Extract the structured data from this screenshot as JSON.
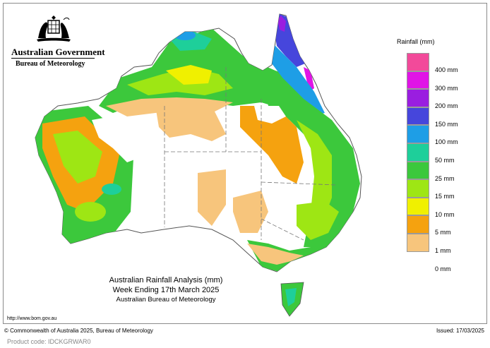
{
  "header": {
    "government": "Australian Government",
    "bureau": "Bureau of Meteorology",
    "crest_icon": "commonwealth-coat-of-arms"
  },
  "legend": {
    "title": "Rainfall (mm)",
    "bins": [
      {
        "label": "400 mm",
        "color": "#f24a9a"
      },
      {
        "label": "300 mm",
        "color": "#e014e6"
      },
      {
        "label": "200 mm",
        "color": "#9a1ee0"
      },
      {
        "label": "150 mm",
        "color": "#4646dc"
      },
      {
        "label": "100 mm",
        "color": "#1e9ee6"
      },
      {
        "label": "50 mm",
        "color": "#1ecf9a"
      },
      {
        "label": "25 mm",
        "color": "#3cc83c"
      },
      {
        "label": "15 mm",
        "color": "#9ee614"
      },
      {
        "label": "10 mm",
        "color": "#f0f000"
      },
      {
        "label": "5 mm",
        "color": "#f5a20f"
      },
      {
        "label": "1 mm",
        "color": "#f7c57c"
      },
      {
        "label": "0 mm",
        "color": "#ffffff"
      }
    ]
  },
  "title": {
    "line1": "Australian Rainfall Analysis (mm)",
    "line2": "Week Ending 17th March 2025",
    "line3": "Australian Bureau of Meteorology"
  },
  "footer": {
    "url": "http://www.bom.gov.au",
    "copyright": "© Commonwealth of Australia 2025, Bureau of Meteorology",
    "issued": "Issued: 17/03/2025",
    "product_code": "Product code: IDCKGRWAR0"
  }
}
